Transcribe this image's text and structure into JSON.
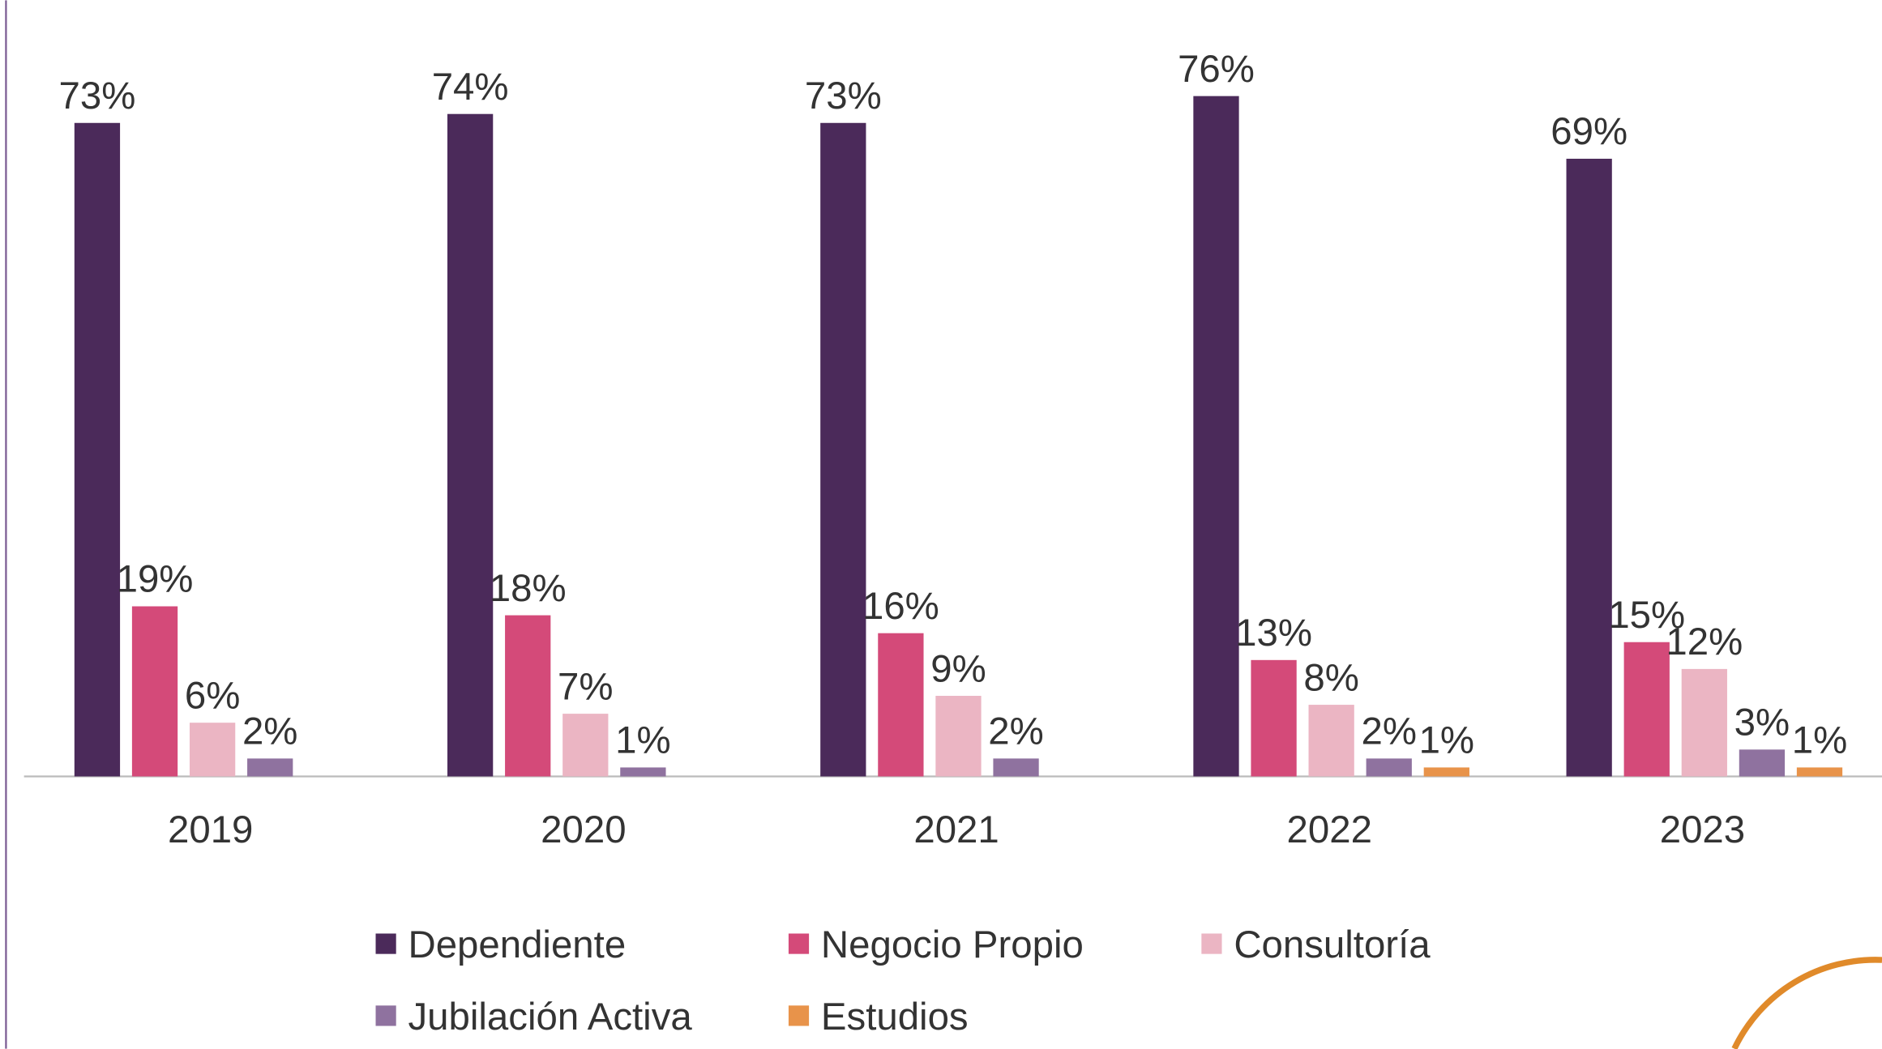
{
  "chart_data": {
    "type": "bar",
    "categories": [
      "2019",
      "2020",
      "2021",
      "2022",
      "2023"
    ],
    "series": [
      {
        "name": "Dependiente",
        "color": "#4b2a5a",
        "values": [
          73,
          74,
          73,
          76,
          69
        ],
        "value_labels": [
          "73%",
          "74%",
          "73%",
          "76%",
          "69%"
        ]
      },
      {
        "name": "Negocio Propio",
        "color": "#d44a79",
        "values": [
          19,
          18,
          16,
          13,
          15
        ],
        "value_labels": [
          "19%",
          "18%",
          "16%",
          "13%",
          "15%"
        ]
      },
      {
        "name": "Consultoría",
        "color": "#ebb5c3",
        "values": [
          6,
          7,
          9,
          8,
          12
        ],
        "value_labels": [
          "6%",
          "7%",
          "9%",
          "8%",
          "12%"
        ]
      },
      {
        "name": "Jubilación Activa",
        "color": "#8f729f",
        "values": [
          2,
          1,
          2,
          2,
          3
        ],
        "value_labels": [
          "2%",
          "1%",
          "2%",
          "2%",
          "3%"
        ]
      },
      {
        "name": "Estudios",
        "color": "#e8934a",
        "values": [
          null,
          null,
          null,
          1,
          1
        ],
        "value_labels": [
          null,
          null,
          null,
          "1%",
          "1%"
        ]
      }
    ],
    "ylim": [
      0,
      80
    ],
    "legend": "bottom"
  }
}
